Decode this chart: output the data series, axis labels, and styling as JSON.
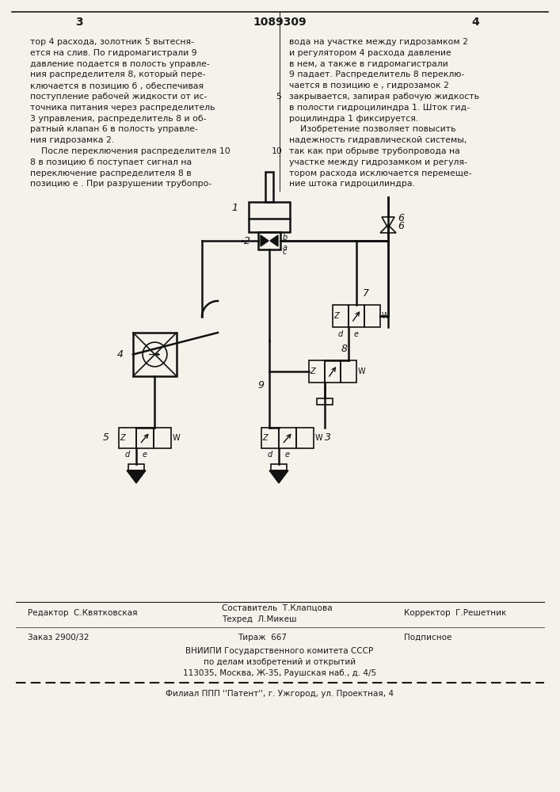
{
  "page_number_left": "3",
  "doc_number": "1089309",
  "page_number_right": "4",
  "bg_color": "#f5f2ec",
  "text_color": "#1a1a1a",
  "left_col_text": [
    "тор 4 расхода, золотник 5 вытесня-",
    "ется на слив. По гидромагистрали 9",
    "давление подается в полость управле-",
    "ния распределителя 8, который пере-",
    "ключается в позицию б , обеспечивая",
    "поступление рабочей жидкости от ис-",
    "точника питания через распределитель",
    "3 управления, распределитель 8 и об-",
    "ратный клапан 6 в полость управле-",
    "ния гидрозамка 2.",
    "    После переключения распределителя 10",
    "8 в позицию б поступает сигнал на",
    "переключение распределителя 8 в",
    "позицию е . При разрушении трубопро-"
  ],
  "right_col_text": [
    "вода на участке между гидрозамком 2",
    "и регулятором 4 расхода давление",
    "в нем, а также в гидромагистрали",
    "9 падает. Распределитель 8 переклю-",
    "чается в позицию е , гидрозамок 2",
    "закрывается, запирая рабочую жидкость",
    "в полости гидроцилиндра 1. Шток гид-",
    "роцилиндра 1 фиксируется.",
    "    Изобретение позволяет повысить",
    "надежность гидравлической системы,",
    "так как при обрыве трубопровода на",
    "участке между гидрозамком и регуля-",
    "тором расхода исключается перемеще-",
    "ние штока гидроцилиндра."
  ],
  "line_5_marker": "5",
  "line_10_marker": "10",
  "footer_editor": "Редактор  С.Квятковская",
  "footer_composer": "Составитель  Т.Клапцова",
  "footer_tech": "Техред  Л.Микеш",
  "footer_corrector": "Корректор  Г.Решетник",
  "footer_order": "Заказ 2900/32",
  "footer_print": "Тираж  667",
  "footer_subscription": "Подписное",
  "footer_org1": "ВНИИПИ Государственного комитета СССР",
  "footer_org2": "по делам изобретений и открытий",
  "footer_addr": "113035, Москва, Ж-35, Раушская наб., д. 4/5",
  "footer_branch": "Филиал ППП ''Патент'', г. Ужгород, ул. Проектная, 4"
}
